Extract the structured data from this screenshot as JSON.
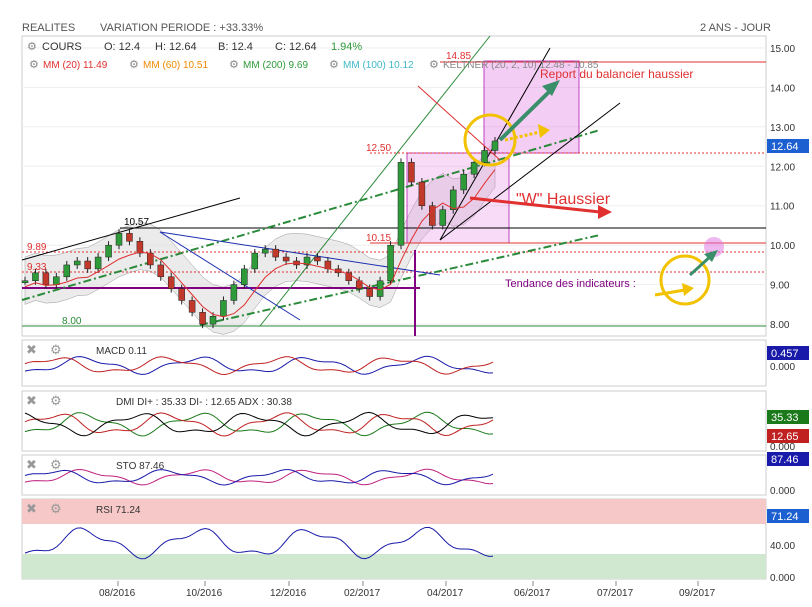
{
  "header": {
    "symbol": "REALITES",
    "variation": "VARIATION PERIODE : +33.33%",
    "period": "2 ANS - JOUR"
  },
  "quote": {
    "label": "COURS",
    "open": "O: 12.4",
    "high": "H: 12.64",
    "low": "B: 12.4",
    "close": "C: 12.64",
    "change": "1.94%"
  },
  "moving_averages": [
    {
      "label": "MM (20)",
      "value": "11.49",
      "color": "#e03030"
    },
    {
      "label": "MM (60)",
      "value": "10.51",
      "color": "#f08a00"
    },
    {
      "label": "MM (200)",
      "value": "9.69",
      "color": "#2e9a3a"
    },
    {
      "label": "MM (100)",
      "value": "10.12",
      "color": "#3fb8c8"
    },
    {
      "label": "KELTNER (20, 2, 10)",
      "value": "12.48 - 10.85",
      "color": "#888888"
    }
  ],
  "annotations": {
    "report": "Report du balancier haussier",
    "w_haussier": "\"W\" Haussier",
    "tendance": "Tendance des indicateurs :",
    "level_1485": "14.85",
    "level_1250": "12.50",
    "level_1015": "10.15",
    "level_1057": "10.57",
    "level_800": "8.00",
    "level_989": "9.89",
    "level_933": "9.33"
  },
  "colors": {
    "candle_up": "#2e9a3a",
    "candle_down": "#c0392b",
    "last_price_bg": "#1c5fd0",
    "magenta_box": "#e070e0",
    "trend_green": "#2a8a3a",
    "annot_red": "#e03030",
    "circle": "#f2c200",
    "teal_arrow": "#3a8f6a"
  },
  "chart_data": [
    {
      "type": "line",
      "name": "Price",
      "x_ticks": [
        "08/2016",
        "10/2016",
        "12/2016",
        "02/2017",
        "04/2017",
        "06/2017",
        "07/2017",
        "09/2017"
      ],
      "y_ticks": [
        "15.00",
        "14.00",
        "13.00",
        "12.00",
        "11.00",
        "10.00",
        "9.00",
        "8.00"
      ],
      "ylim": [
        7.7,
        15.3
      ],
      "last_price": "12.64",
      "series": [
        {
          "name": "Price",
          "values": [
            9.1,
            9.3,
            9.0,
            9.2,
            9.5,
            9.6,
            9.4,
            9.7,
            10.0,
            10.3,
            10.1,
            9.8,
            9.5,
            9.2,
            8.9,
            8.6,
            8.3,
            8.0,
            8.2,
            8.6,
            9.0,
            9.4,
            9.8,
            9.9,
            9.7,
            9.6,
            9.5,
            9.7,
            9.6,
            9.4,
            9.3,
            9.1,
            8.9,
            8.7,
            9.1,
            10.0,
            12.1,
            11.6,
            11.0,
            10.5,
            10.9,
            11.4,
            11.8,
            12.1,
            12.4,
            12.64
          ]
        }
      ]
    },
    {
      "type": "line",
      "name": "MACD",
      "label": "MACD",
      "value": "0.11",
      "y_ticks": [
        "0.000"
      ],
      "last_value": "0.457"
    },
    {
      "type": "line",
      "name": "DMI",
      "label": "DMI DI+ : 35.33 DI- : 12.65 ADX : 30.38",
      "y_ticks": [
        "0.000"
      ],
      "last_values": [
        "35.33",
        "12.65"
      ]
    },
    {
      "type": "line",
      "name": "STO",
      "label": "STO",
      "value": "87.46",
      "y_ticks": [
        "0.000"
      ],
      "last_value": "87.46"
    },
    {
      "type": "line",
      "name": "RSI",
      "label": "RSI",
      "value": "71.24",
      "y_ticks": [
        "40.00",
        "0.000"
      ],
      "last_value": "71.24"
    }
  ]
}
